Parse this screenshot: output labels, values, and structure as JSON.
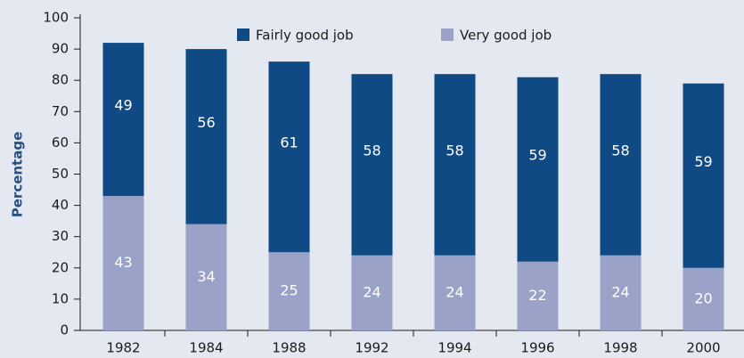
{
  "chart_data": {
    "type": "stacked_bar",
    "y_label": "Percentage",
    "categories": [
      "1982",
      "1984",
      "1988",
      "1992",
      "1994",
      "1996",
      "1998",
      "2000"
    ],
    "series": [
      {
        "name": "Very good job",
        "color": "#9aa2c8",
        "values": [
          43,
          34,
          25,
          24,
          24,
          22,
          24,
          20
        ]
      },
      {
        "name": "Fairly good job",
        "color": "#0f4a85",
        "values": [
          49,
          56,
          61,
          58,
          58,
          59,
          58,
          59
        ]
      }
    ],
    "ylim": [
      0,
      100
    ],
    "yticks": [
      0,
      10,
      20,
      30,
      40,
      50,
      60,
      70,
      80,
      90,
      100
    ]
  }
}
